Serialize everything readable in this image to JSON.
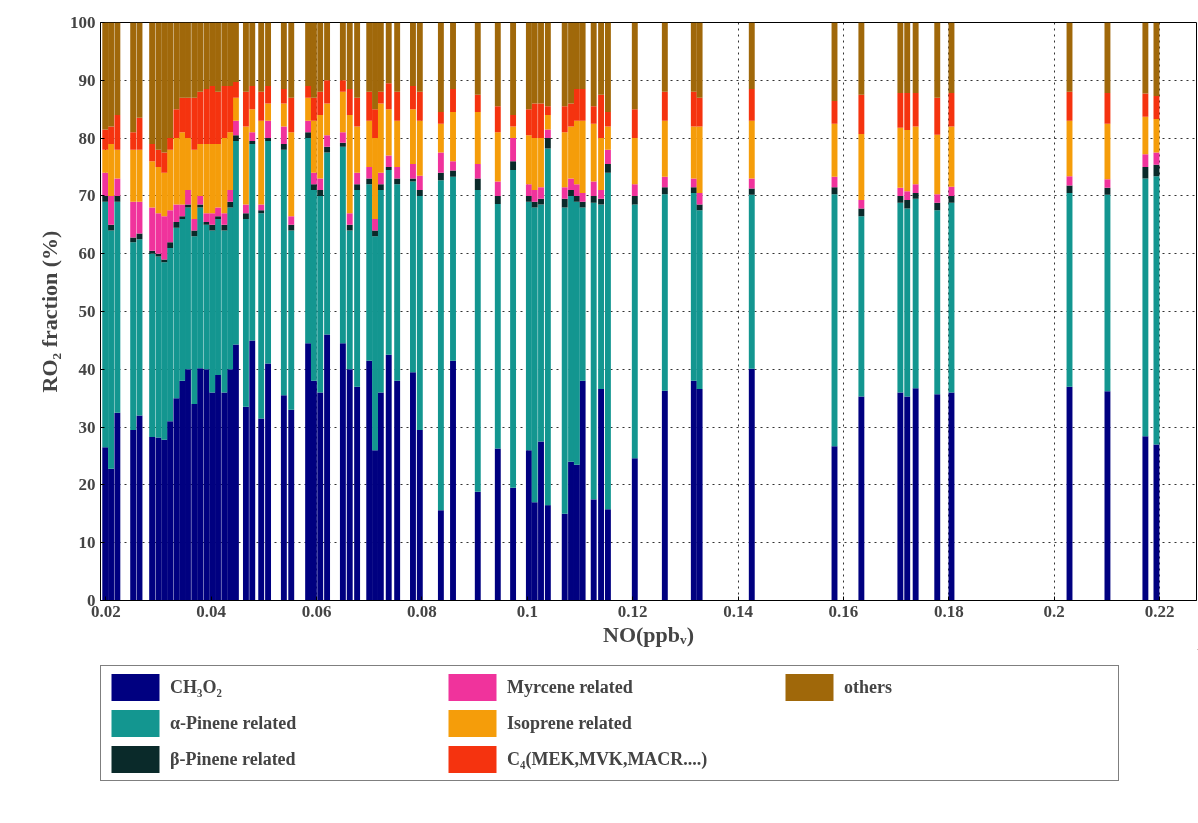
{
  "chart_data": {
    "type": "bar",
    "stacked": true,
    "xlabel": "NO(ppbᵥ)",
    "ylabel": "RO₂ fraction (%)",
    "xlim": [
      0.019,
      0.227
    ],
    "xticks": [
      0.02,
      0.04,
      0.06,
      0.08,
      0.1,
      0.12,
      0.14,
      0.16,
      0.18,
      0.2,
      0.22
    ],
    "ylim": [
      0,
      100
    ],
    "yticks": [
      0,
      10,
      20,
      30,
      40,
      50,
      60,
      70,
      80,
      90,
      100
    ],
    "grid": true,
    "legend": "bottom",
    "x": [
      0.0199,
      0.021,
      0.0222,
      0.0252,
      0.0264,
      0.0288,
      0.03,
      0.0311,
      0.0322,
      0.0334,
      0.0345,
      0.0356,
      0.0368,
      0.0379,
      0.0391,
      0.0402,
      0.0413,
      0.0425,
      0.0436,
      0.0447,
      0.0466,
      0.0478,
      0.0495,
      0.0508,
      0.0538,
      0.0552,
      0.0584,
      0.0595,
      0.0607,
      0.062,
      0.065,
      0.0663,
      0.0677,
      0.07,
      0.0711,
      0.0722,
      0.0737,
      0.0753,
      0.0783,
      0.0796,
      0.0836,
      0.0859,
      0.0906,
      0.0944,
      0.0973,
      0.1003,
      0.1014,
      0.1026,
      0.1039,
      0.1071,
      0.1083,
      0.1094,
      0.1105,
      0.1126,
      0.114,
      0.1153,
      0.1204,
      0.1261,
      0.1316,
      0.1327,
      0.1426,
      0.1583,
      0.1634,
      0.1708,
      0.1721,
      0.1737,
      0.1778,
      0.1805,
      0.2029,
      0.2101,
      0.2173,
      0.2194
    ],
    "series": [
      {
        "name": "CH₃O₂",
        "color": "#000080",
        "values": [
          26.5,
          22.8,
          32.5,
          29.5,
          32,
          28.3,
          28.2,
          27.8,
          31,
          35,
          38,
          40,
          34,
          40.2,
          40,
          36,
          39,
          36,
          40,
          44.3,
          33.5,
          45,
          31.5,
          41,
          35.5,
          33,
          44.5,
          38,
          36,
          46,
          44.5,
          40,
          37,
          41.5,
          26,
          36,
          42.5,
          38,
          39.5,
          29.5,
          15.6,
          41.5,
          18.8,
          26.3,
          19.5,
          26,
          17,
          27.5,
          16.5,
          15,
          24,
          23.5,
          38,
          17.5,
          36.6,
          15.8,
          24.6,
          36.3,
          38,
          36.6,
          40.1,
          26.7,
          35.3,
          36,
          35.3,
          36.7,
          35.7,
          36,
          37,
          36.2,
          28.4,
          27
        ]
      },
      {
        "name": "α-Pinene related",
        "color": "#139690",
        "values": [
          42.5,
          41.2,
          36.5,
          32.5,
          30.5,
          31.7,
          31.3,
          30.7,
          30,
          29.5,
          28,
          28,
          29,
          27.8,
          25,
          28,
          27,
          28,
          28,
          35.2,
          32.5,
          34,
          35.5,
          38.5,
          42.5,
          31,
          35.5,
          33,
          34,
          31.5,
          34,
          24,
          34,
          30.5,
          37,
          35,
          32,
          34,
          33,
          40.5,
          57.1,
          31.8,
          52.2,
          42.3,
          55,
          43,
          51,
          41,
          61.7,
          53,
          46,
          45.5,
          30,
          51.3,
          31.9,
          58.2,
          43.9,
          34,
          32.5,
          30.9,
          30.1,
          43.6,
          31.2,
          32.8,
          32.5,
          32.8,
          31.8,
          32.8,
          33.5,
          34,
          44.6,
          46.4
        ]
      },
      {
        "name": "β-Pinene related",
        "color": "#0a2a2a",
        "values": [
          1,
          1,
          1,
          0.8,
          1,
          0.5,
          0.5,
          0.5,
          1,
          1,
          0.5,
          0.5,
          1,
          0.5,
          0.5,
          1,
          0.5,
          1,
          1,
          1,
          1,
          0.5,
          0.5,
          0.5,
          1,
          1,
          1,
          1,
          1,
          1,
          0.7,
          1,
          1,
          1,
          1,
          1,
          0.5,
          1,
          0.5,
          1,
          1.3,
          1.1,
          2,
          1.4,
          1.5,
          1,
          1,
          1,
          1.8,
          1.5,
          1,
          1,
          1,
          1.2,
          1,
          1.5,
          1.5,
          1.2,
          1,
          1,
          1.1,
          1.2,
          1.3,
          1.2,
          1.5,
          1,
          1.3,
          1.2,
          1.3,
          1.2,
          2,
          2
        ]
      },
      {
        "name": "Myrcene related",
        "color": "#f0339c",
        "values": [
          4,
          5,
          3,
          6.2,
          5.5,
          7.5,
          7,
          7.5,
          5.5,
          3,
          2,
          2.5,
          2,
          1.5,
          1.5,
          2,
          1.5,
          2,
          2,
          2.5,
          1.5,
          1.5,
          1,
          3,
          3,
          1.5,
          2,
          2,
          2,
          2,
          1.8,
          2,
          2,
          2,
          2,
          2,
          2,
          2,
          2.5,
          2.5,
          3.5,
          1.6,
          2.5,
          2.5,
          4,
          2,
          2,
          2,
          1.5,
          2,
          2,
          2,
          1.5,
          2.5,
          1.5,
          2.5,
          2,
          1.8,
          1.5,
          2,
          1.7,
          1.8,
          1.5,
          1.4,
          1.5,
          1.5,
          1.5,
          1.6,
          1.6,
          1.5,
          2.2,
          2.1
        ]
      },
      {
        "name": "Isoprene related",
        "color": "#f59d0a",
        "values": [
          4,
          9,
          5,
          9,
          9,
          8,
          8,
          7.5,
          10.5,
          11.5,
          12.5,
          9,
          12,
          9,
          12,
          12,
          11,
          13,
          10,
          4,
          13.5,
          4,
          14.5,
          3,
          4,
          14.5,
          4,
          9,
          11,
          5.5,
          7,
          17,
          8,
          8,
          14,
          12,
          8,
          8,
          9.5,
          9.5,
          5,
          8.5,
          9,
          8.5,
          2,
          8.5,
          9,
          8.5,
          2.5,
          9.5,
          9,
          11,
          12.5,
          10,
          9,
          4,
          8,
          9.7,
          9,
          11.5,
          10,
          9.2,
          11.4,
          10.4,
          10.6,
          10,
          10.3,
          10.4,
          9.6,
          9.6,
          6.5,
          5.8
        ]
      },
      {
        "name": "C₄(MEK,MVK,MACR....)",
        "color": "#f5330f",
        "values": [
          3.5,
          3,
          6,
          3,
          5.5,
          3,
          3,
          3.5,
          2,
          5,
          6,
          7,
          9,
          9,
          9.5,
          10,
          9,
          9,
          8,
          2.7,
          6,
          4,
          5,
          3,
          2.5,
          6,
          2,
          4,
          4,
          4,
          2,
          4.5,
          5,
          5,
          5,
          2,
          4.5,
          5,
          4,
          5,
          2,
          4,
          3,
          4.5,
          2,
          4.5,
          6,
          6,
          1.5,
          4.5,
          4,
          5.5,
          5.5,
          3,
          7.5,
          2.5,
          5,
          5,
          6,
          5,
          5.5,
          3.9,
          6.8,
          6,
          6.4,
          5.8,
          6.4,
          5.8,
          5,
          5.3,
          4,
          4
        ]
      },
      {
        "name": "others",
        "color": "#a0680a",
        "values": [
          18.5,
          18,
          16,
          19,
          16.5,
          21,
          22,
          22.5,
          20,
          15,
          13,
          13,
          13,
          12,
          11.5,
          11,
          12,
          11,
          11,
          10.3,
          12,
          11,
          12,
          11,
          11.5,
          13,
          11,
          13,
          12,
          10,
          10,
          11.5,
          13,
          12,
          15,
          12,
          10.5,
          12,
          11,
          12,
          15.5,
          11.5,
          12.5,
          14.5,
          16,
          15,
          14,
          14,
          14.5,
          14.5,
          14,
          11.5,
          11.5,
          14.5,
          12.5,
          15.5,
          15,
          12,
          12,
          13,
          11.5,
          13.6,
          12.5,
          12.2,
          12.2,
          12.2,
          13,
          12.2,
          12,
          12.2,
          12.3,
          12.7
        ]
      }
    ]
  }
}
